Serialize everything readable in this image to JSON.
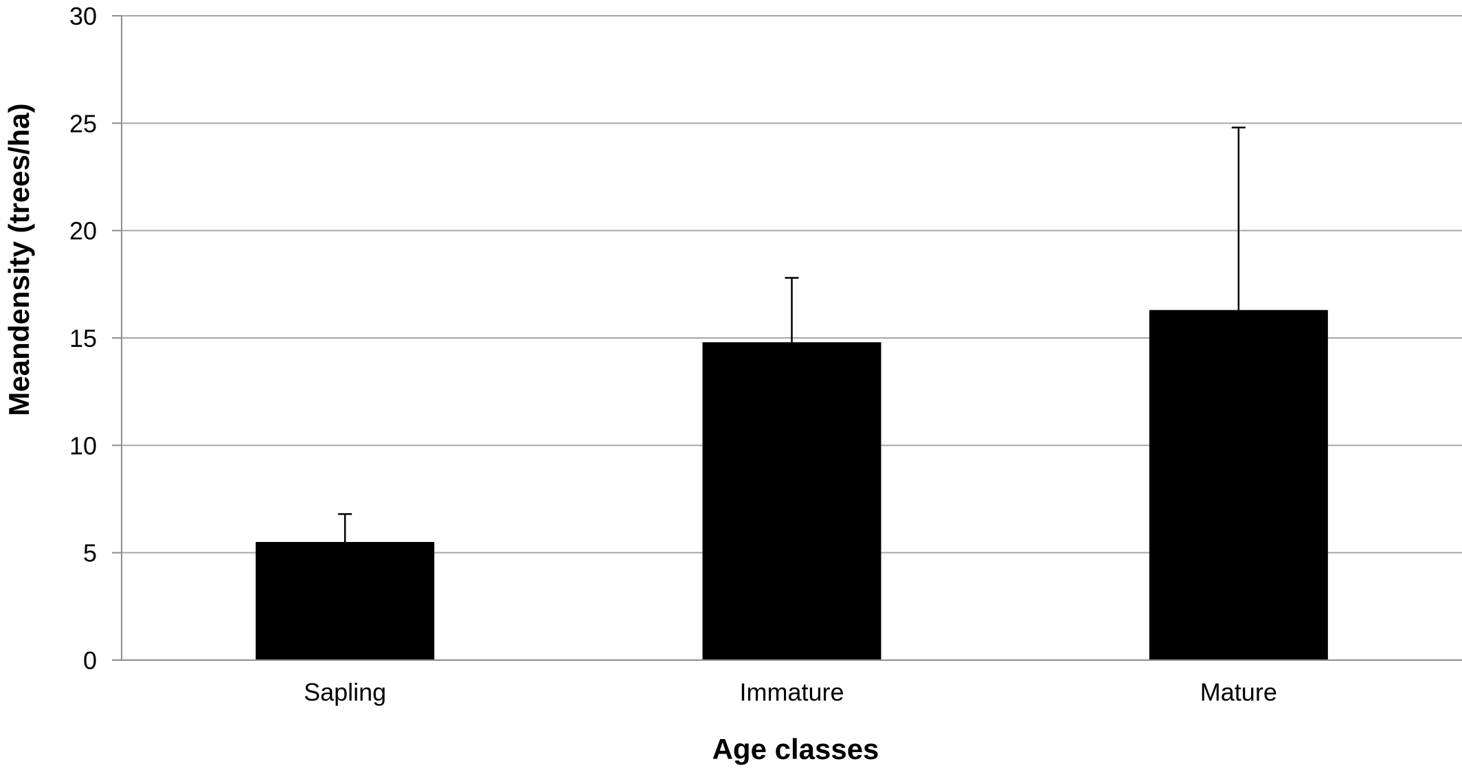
{
  "chart_data": {
    "type": "bar",
    "title": "",
    "xlabel": "Age classes",
    "ylabel": "Meandensity  (trees/ha)",
    "categories": [
      "Sapling",
      "Immature",
      "Mature"
    ],
    "values": [
      5.5,
      14.8,
      16.3
    ],
    "error_upper": [
      6.8,
      17.8,
      24.8
    ],
    "ylim": [
      0,
      30
    ],
    "yticks": [
      0,
      5,
      10,
      15,
      20,
      25,
      30
    ],
    "grid": true,
    "legend": "none",
    "bar_color": "#000000"
  }
}
